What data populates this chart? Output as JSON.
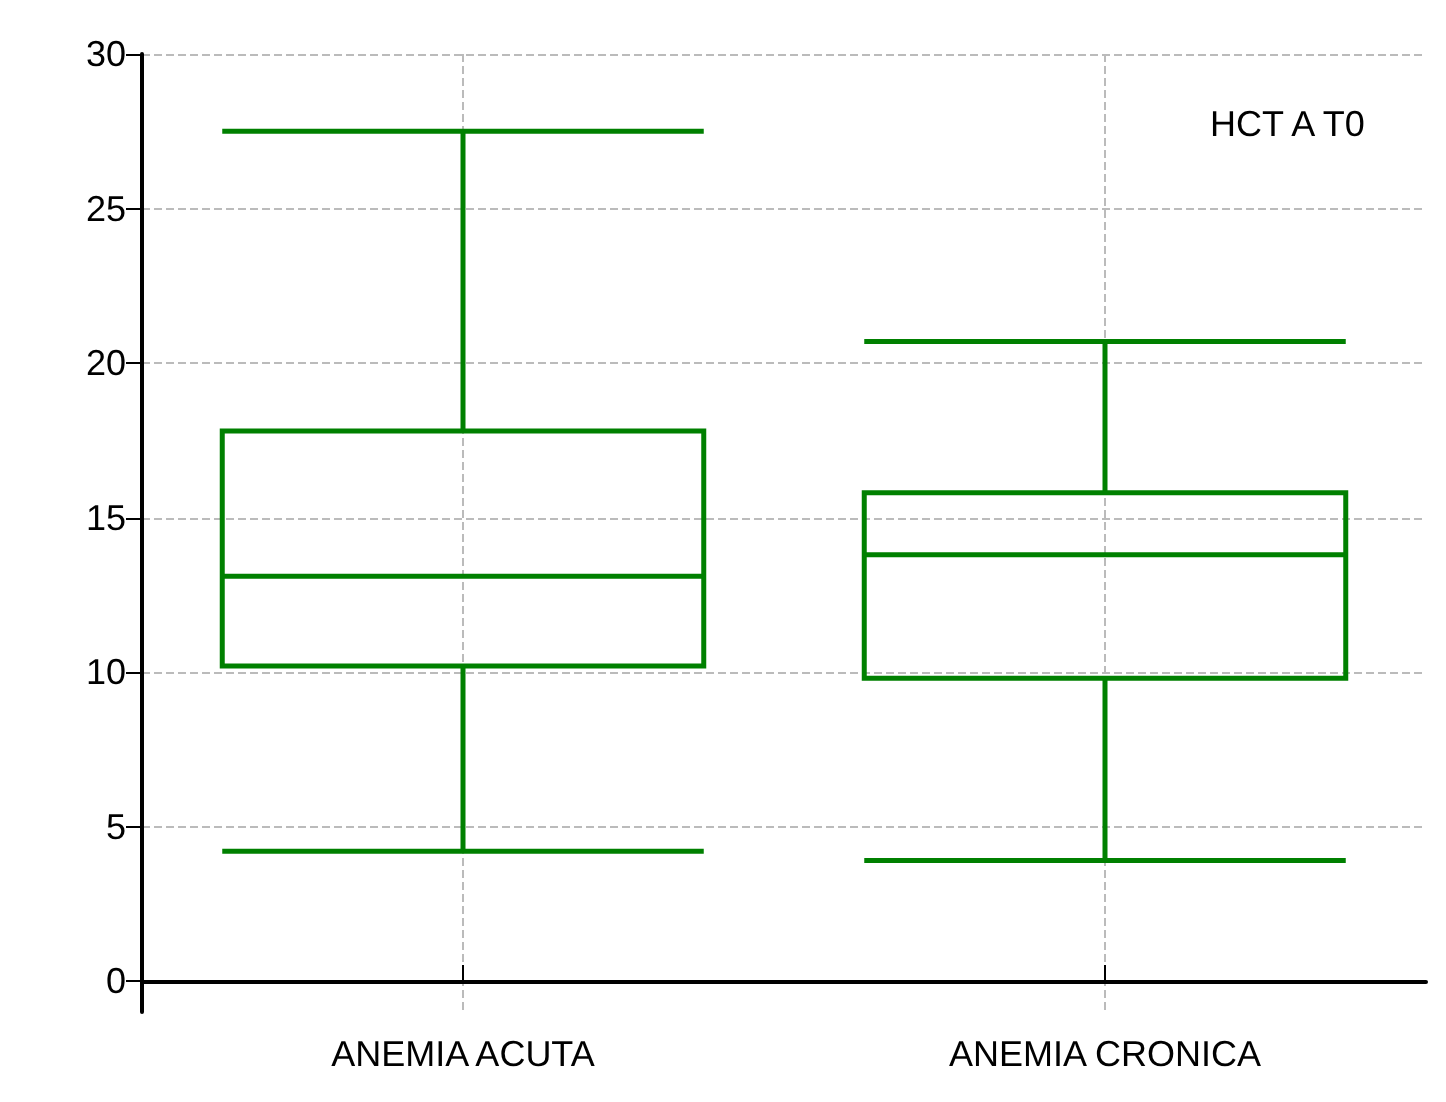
{
  "chart_data": {
    "type": "box",
    "categories": [
      "ANEMIA ACUTA",
      "ANEMIA CRONICA"
    ],
    "boxes": [
      {
        "low": 4.2,
        "q1": 10.2,
        "median": 13.1,
        "q3": 17.8,
        "high": 27.5
      },
      {
        "low": 3.9,
        "q1": 9.8,
        "median": 13.8,
        "q3": 15.8,
        "high": 20.7
      }
    ],
    "color": "#008000",
    "ylim": [
      -1,
      30
    ],
    "yticks": [
      0,
      5,
      10,
      15,
      20,
      25,
      30
    ],
    "grid": true,
    "annotations": [
      "HCT A T0"
    ]
  }
}
